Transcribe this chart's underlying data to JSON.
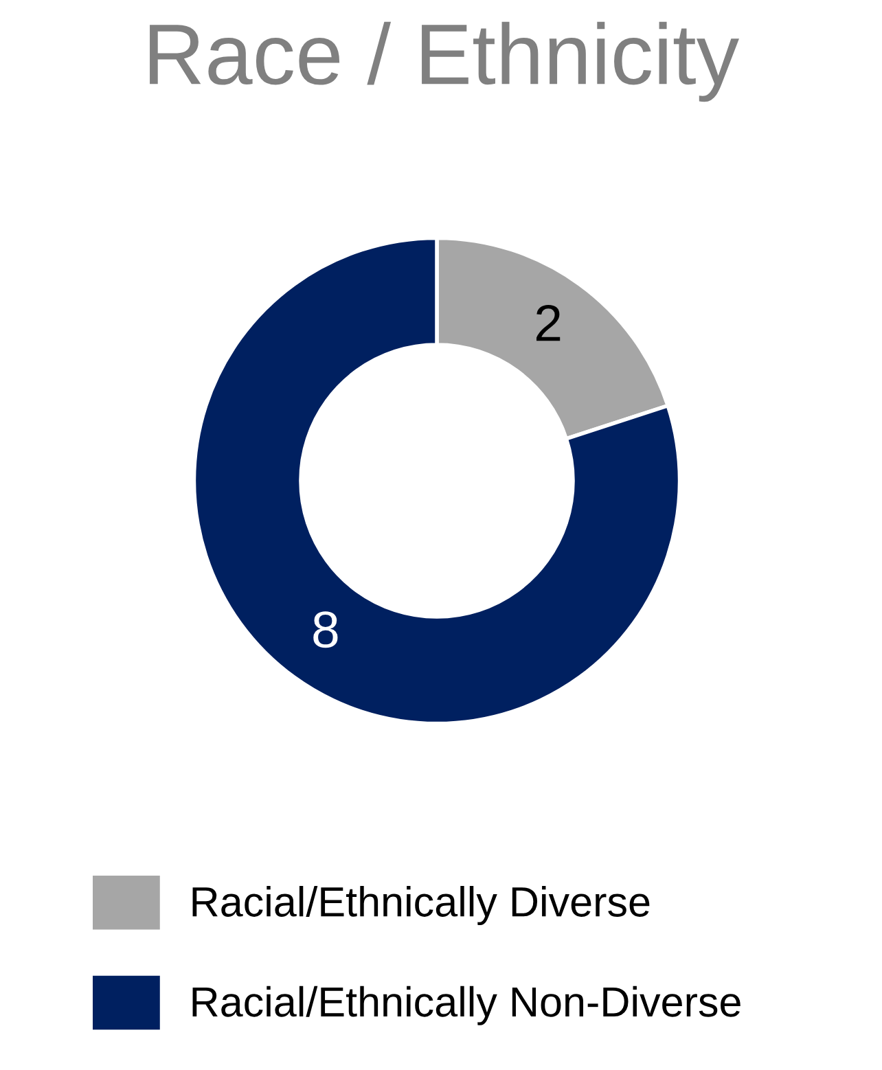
{
  "chart_data": {
    "type": "donut",
    "title": "Race / Ethnicity",
    "categories": [
      "Racial/Ethnically Diverse",
      "Racial/Ethnically Non-Diverse"
    ],
    "values": [
      2,
      8
    ],
    "colors": [
      "#a6a6a6",
      "#002060"
    ],
    "data_labels": true,
    "legend": "bottom"
  }
}
